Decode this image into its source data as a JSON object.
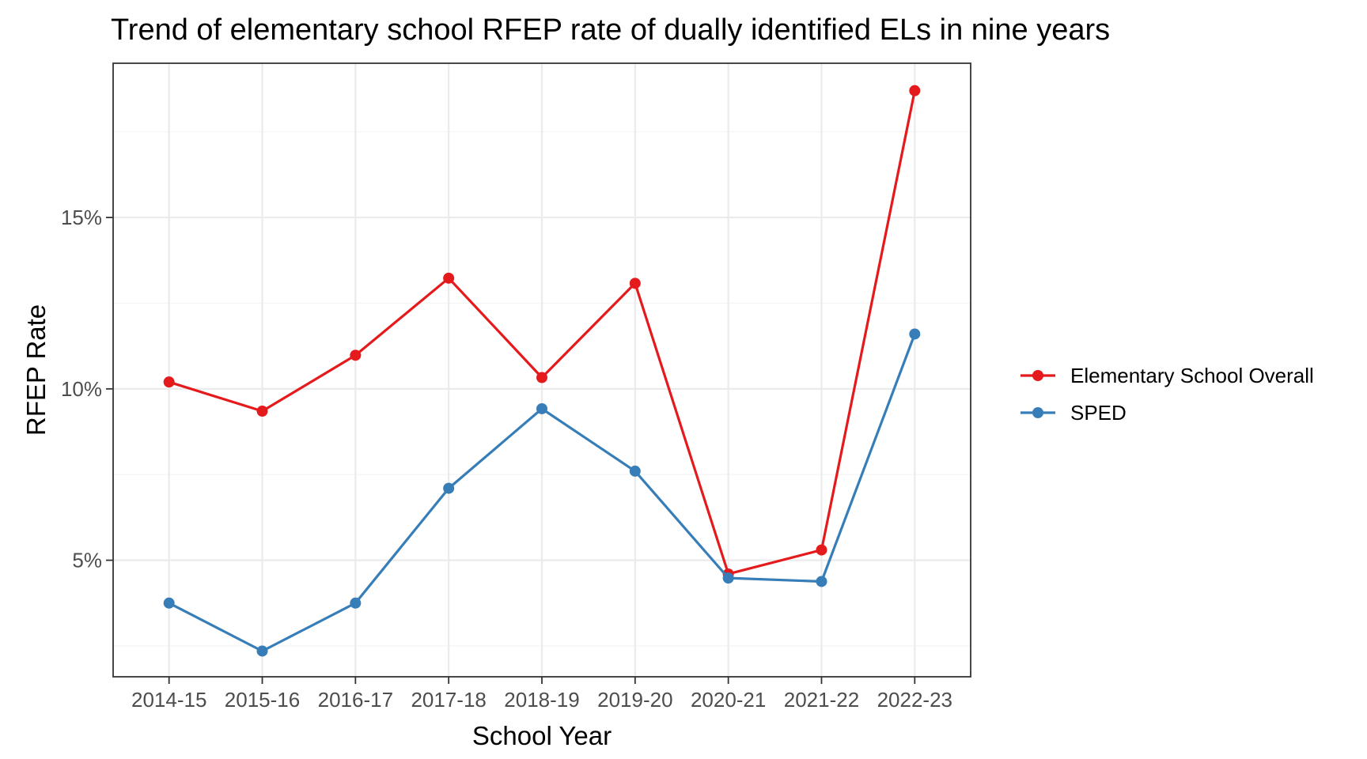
{
  "chart_data": {
    "type": "line",
    "title": "Trend of elementary school RFEP rate of dually identified ELs in nine years",
    "xlabel": "School Year",
    "ylabel": "RFEP Rate",
    "categories": [
      "2014-15",
      "2015-16",
      "2016-17",
      "2017-18",
      "2018-19",
      "2019-20",
      "2020-21",
      "2021-22",
      "2022-23"
    ],
    "y_ticks": [
      5,
      10,
      15
    ],
    "y_tick_labels": [
      "5%",
      "10%",
      "15%"
    ],
    "ylim": [
      1.6,
      19.5
    ],
    "grid": true,
    "legend_position": "right",
    "series": [
      {
        "name": "Elementary School Overall",
        "color": "#e41a1c",
        "values": [
          10.2,
          9.35,
          10.98,
          13.23,
          10.33,
          13.08,
          4.6,
          5.3,
          18.7
        ]
      },
      {
        "name": "SPED",
        "color": "#377eb8",
        "values": [
          3.75,
          2.35,
          3.75,
          7.1,
          9.42,
          7.6,
          4.48,
          4.38,
          11.6
        ]
      }
    ]
  }
}
